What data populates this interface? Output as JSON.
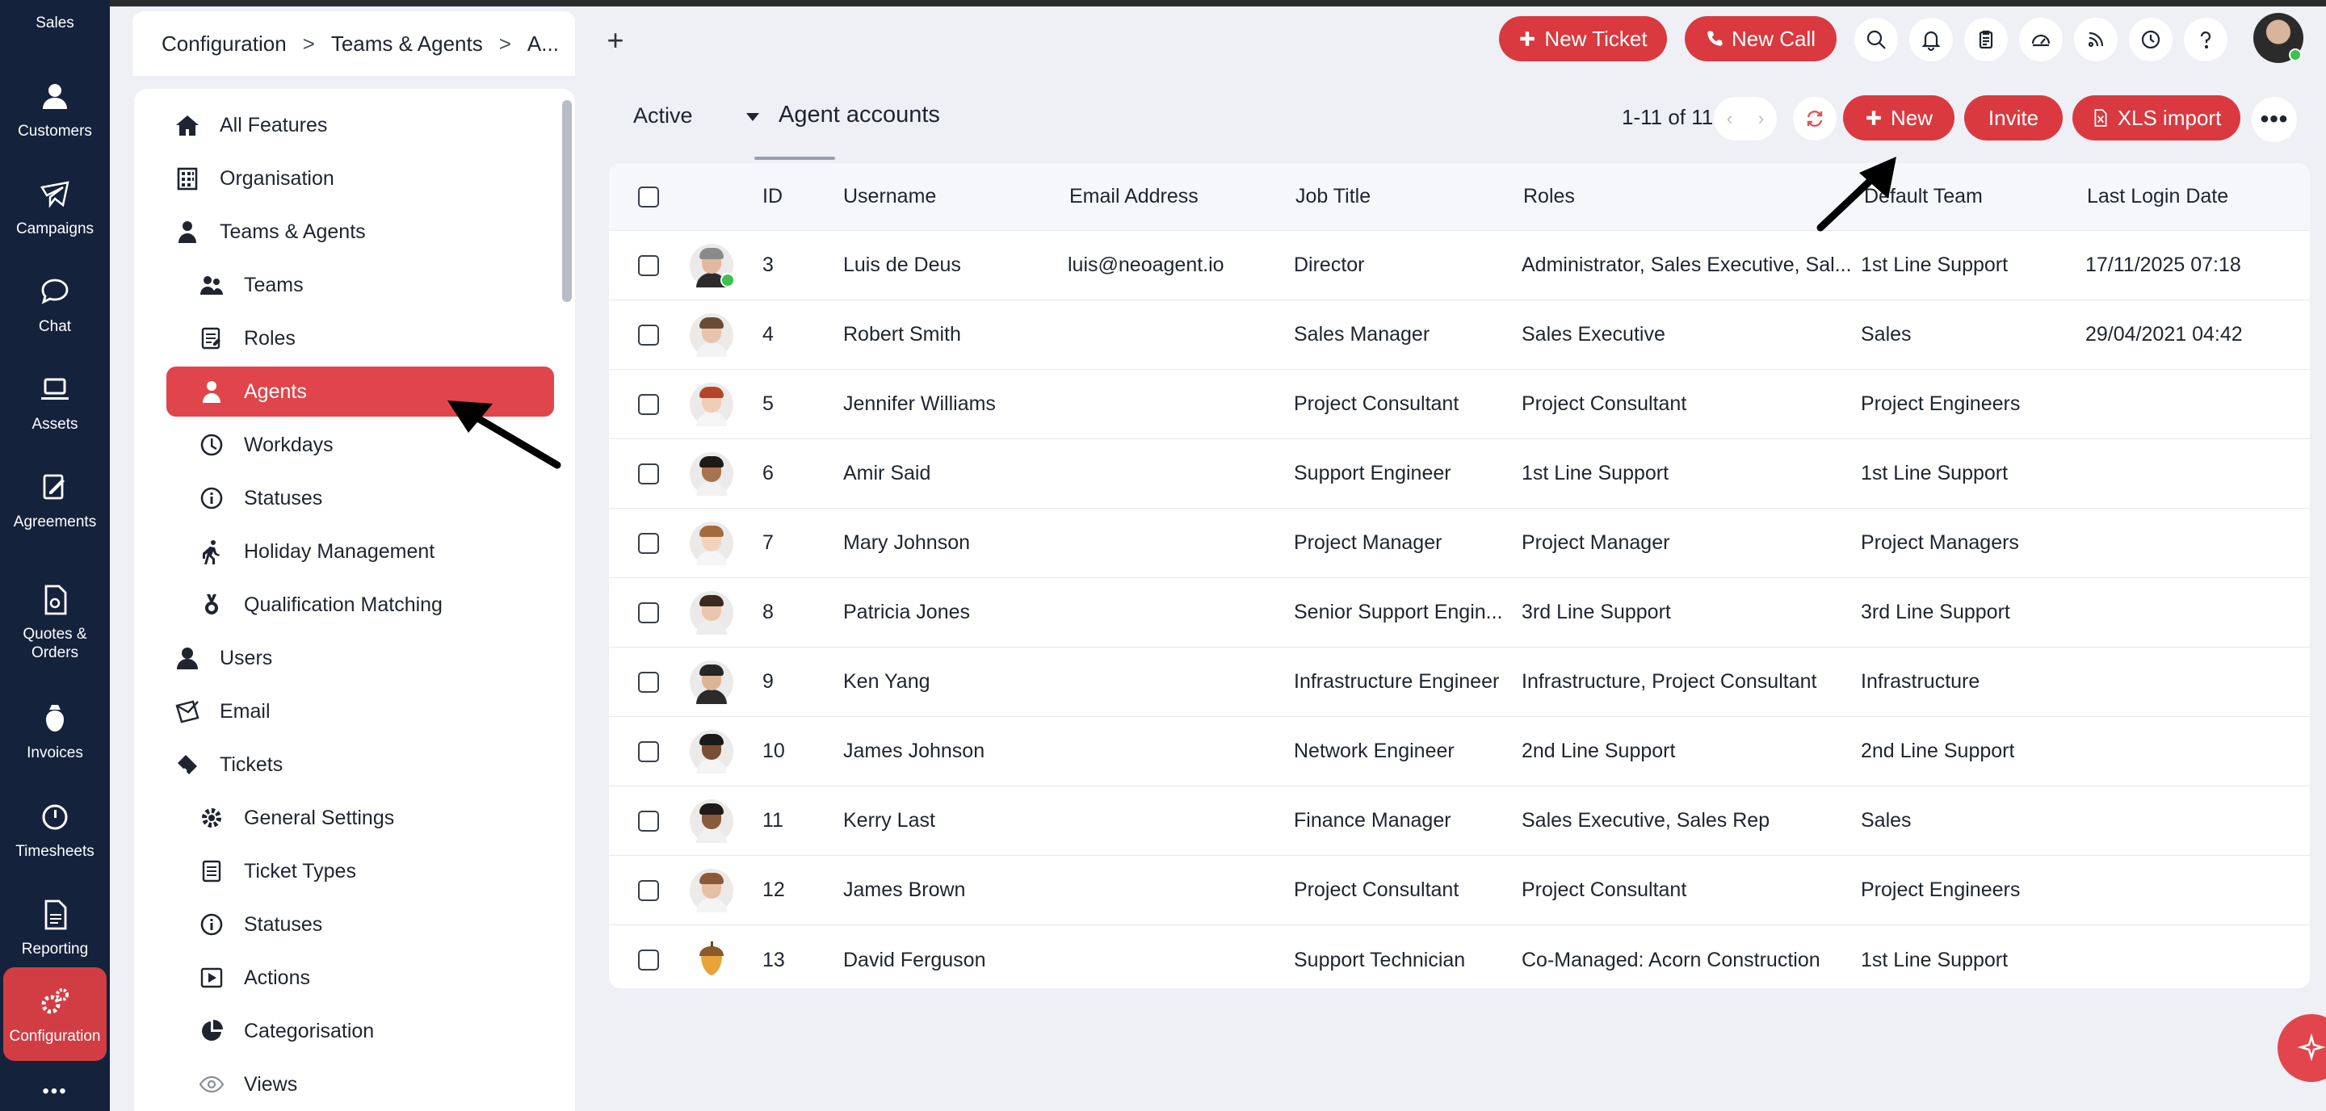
{
  "leftnav": {
    "items": [
      {
        "label": "Sales",
        "icon": "sales-icon"
      },
      {
        "label": "Customers",
        "icon": "customers-icon"
      },
      {
        "label": "Campaigns",
        "icon": "campaigns-icon"
      },
      {
        "label": "Chat",
        "icon": "chat-icon"
      },
      {
        "label": "Assets",
        "icon": "assets-icon"
      },
      {
        "label": "Agreements",
        "icon": "agreements-icon"
      },
      {
        "label": "Quotes &\nOrders",
        "icon": "quotes-icon"
      },
      {
        "label": "Invoices",
        "icon": "invoices-icon"
      },
      {
        "label": "Timesheets",
        "icon": "timesheets-icon"
      },
      {
        "label": "Reporting",
        "icon": "reporting-icon"
      },
      {
        "label": "Configuration",
        "icon": "configuration-icon"
      }
    ],
    "more_label": "•••"
  },
  "topbar": {
    "breadcrumb": [
      "Configuration",
      "Teams & Agents",
      "A..."
    ],
    "add_tab_label": "+",
    "new_ticket_label": "New Ticket",
    "new_call_label": "New Call",
    "icons": [
      "search-icon",
      "bell-icon",
      "clipboard-icon",
      "dashboard-icon",
      "rss-icon",
      "clock-icon",
      "help-icon"
    ]
  },
  "sidebar": {
    "items": [
      {
        "label": "All Features",
        "level": 1,
        "icon": "home-icon"
      },
      {
        "label": "Organisation",
        "level": 1,
        "icon": "building-icon"
      },
      {
        "label": "Teams & Agents",
        "level": 1,
        "icon": "agent-icon"
      },
      {
        "label": "Teams",
        "level": 2,
        "icon": "team-icon"
      },
      {
        "label": "Roles",
        "level": 2,
        "icon": "roles-icon"
      },
      {
        "label": "Agents",
        "level": 2,
        "icon": "agent-icon",
        "active": true
      },
      {
        "label": "Workdays",
        "level": 2,
        "icon": "clock-icon"
      },
      {
        "label": "Statuses",
        "level": 2,
        "icon": "info-icon"
      },
      {
        "label": "Holiday Management",
        "level": 2,
        "icon": "walking-icon"
      },
      {
        "label": "Qualification Matching",
        "level": 2,
        "icon": "medal-icon"
      },
      {
        "label": "Users",
        "level": 1,
        "icon": "user-icon"
      },
      {
        "label": "Email",
        "level": 1,
        "icon": "email-icon"
      },
      {
        "label": "Tickets",
        "level": 1,
        "icon": "ticket-icon"
      },
      {
        "label": "General Settings",
        "level": 2,
        "icon": "gear-icon"
      },
      {
        "label": "Ticket Types",
        "level": 2,
        "icon": "list-icon"
      },
      {
        "label": "Statuses",
        "level": 2,
        "icon": "info-icon"
      },
      {
        "label": "Actions",
        "level": 2,
        "icon": "play-icon"
      },
      {
        "label": "Categorisation",
        "level": 2,
        "icon": "pie-icon"
      },
      {
        "label": "Views",
        "level": 2,
        "icon": "eye-icon"
      }
    ]
  },
  "main": {
    "status_filter": "Active",
    "view_title": "Agent accounts",
    "count_label": "1-11 of 11",
    "new_label": "New",
    "invite_label": "Invite",
    "xls_import_label": "XLS import",
    "columns": [
      "ID",
      "Username",
      "Email Address",
      "Job Title",
      "Roles",
      "Default Team",
      "Last Login Date"
    ],
    "rows": [
      {
        "id": "3",
        "username": "Luis de Deus",
        "email": "luis@neoagent.io",
        "job_title": "Director",
        "roles": "Administrator, Sales Executive, Sal...",
        "team": "1st Line Support",
        "last_login": "17/11/2025 07:18",
        "avatar": "person-avatar-icon",
        "online": true,
        "skin": "#e2b9a0",
        "hair": "#8a8a8a",
        "shirt": "#2b2b2b"
      },
      {
        "id": "4",
        "username": "Robert Smith",
        "email": "",
        "job_title": "Sales Manager",
        "roles": "Sales Executive",
        "team": "Sales",
        "last_login": "29/04/2021 04:42",
        "avatar": "person-avatar-icon",
        "online": false,
        "skin": "#e7c4ab",
        "hair": "#6a4b36",
        "shirt": "#f3f3f3"
      },
      {
        "id": "5",
        "username": "Jennifer Williams",
        "email": "",
        "job_title": "Project Consultant",
        "roles": "Project Consultant",
        "team": "Project Engineers",
        "last_login": "",
        "avatar": "person-avatar-icon",
        "online": false,
        "skin": "#f0cdb6",
        "hair": "#b3452a",
        "shirt": "#f5f5f5"
      },
      {
        "id": "6",
        "username": "Amir Said",
        "email": "",
        "job_title": "Support Engineer",
        "roles": "1st Line Support",
        "team": "1st Line Support",
        "last_login": "",
        "avatar": "person-avatar-icon",
        "online": false,
        "skin": "#a8734f",
        "hair": "#1f1a17",
        "shirt": "#f2f2f2"
      },
      {
        "id": "7",
        "username": "Mary Johnson",
        "email": "",
        "job_title": "Project Manager",
        "roles": "Project Manager",
        "team": "Project Managers",
        "last_login": "",
        "avatar": "person-avatar-icon",
        "online": false,
        "skin": "#f1d3bd",
        "hair": "#a36a3e",
        "shirt": "#f5f5f5"
      },
      {
        "id": "8",
        "username": "Patricia Jones",
        "email": "",
        "job_title": "Senior Support Engin...",
        "roles": "3rd Line Support",
        "team": "3rd Line Support",
        "last_login": "",
        "avatar": "person-avatar-icon",
        "online": false,
        "skin": "#e8c6ad",
        "hair": "#3a2a20",
        "shirt": "#ededed"
      },
      {
        "id": "9",
        "username": "Ken Yang",
        "email": "",
        "job_title": "Infrastructure Engineer",
        "roles": "Infrastructure, Project Consultant",
        "team": "Infrastructure",
        "last_login": "",
        "avatar": "person-avatar-icon",
        "online": false,
        "skin": "#dcb597",
        "hair": "#262626",
        "shirt": "#2b2b2b"
      },
      {
        "id": "10",
        "username": "James Johnson",
        "email": "",
        "job_title": "Network Engineer",
        "roles": "2nd Line Support",
        "team": "2nd Line Support",
        "last_login": "",
        "avatar": "person-avatar-icon",
        "online": false,
        "skin": "#7a4e34",
        "hair": "#1a1a1a",
        "shirt": "#f4f4f4"
      },
      {
        "id": "11",
        "username": "Kerry Last",
        "email": "",
        "job_title": "Finance Manager",
        "roles": "Sales Executive, Sales Rep",
        "team": "Sales",
        "last_login": "",
        "avatar": "person-avatar-icon",
        "online": false,
        "skin": "#8a5a3c",
        "hair": "#1f1a17",
        "shirt": "#f0f0f0"
      },
      {
        "id": "12",
        "username": "James Brown",
        "email": "",
        "job_title": "Project Consultant",
        "roles": "Project Consultant",
        "team": "Project Engineers",
        "last_login": "",
        "avatar": "person-avatar-icon",
        "online": false,
        "skin": "#e6c0a4",
        "hair": "#8b5a35",
        "shirt": "#f4f4f4"
      },
      {
        "id": "13",
        "username": "David Ferguson",
        "email": "",
        "job_title": "Support Technician",
        "roles": "Co-Managed: Acorn Construction",
        "team": "1st Line Support",
        "last_login": "",
        "avatar": "acorn-icon",
        "online": false
      }
    ]
  },
  "colors": {
    "accent_red": "#d9393f",
    "nav_bg": "#14223c",
    "online_green": "#3cc14a"
  }
}
